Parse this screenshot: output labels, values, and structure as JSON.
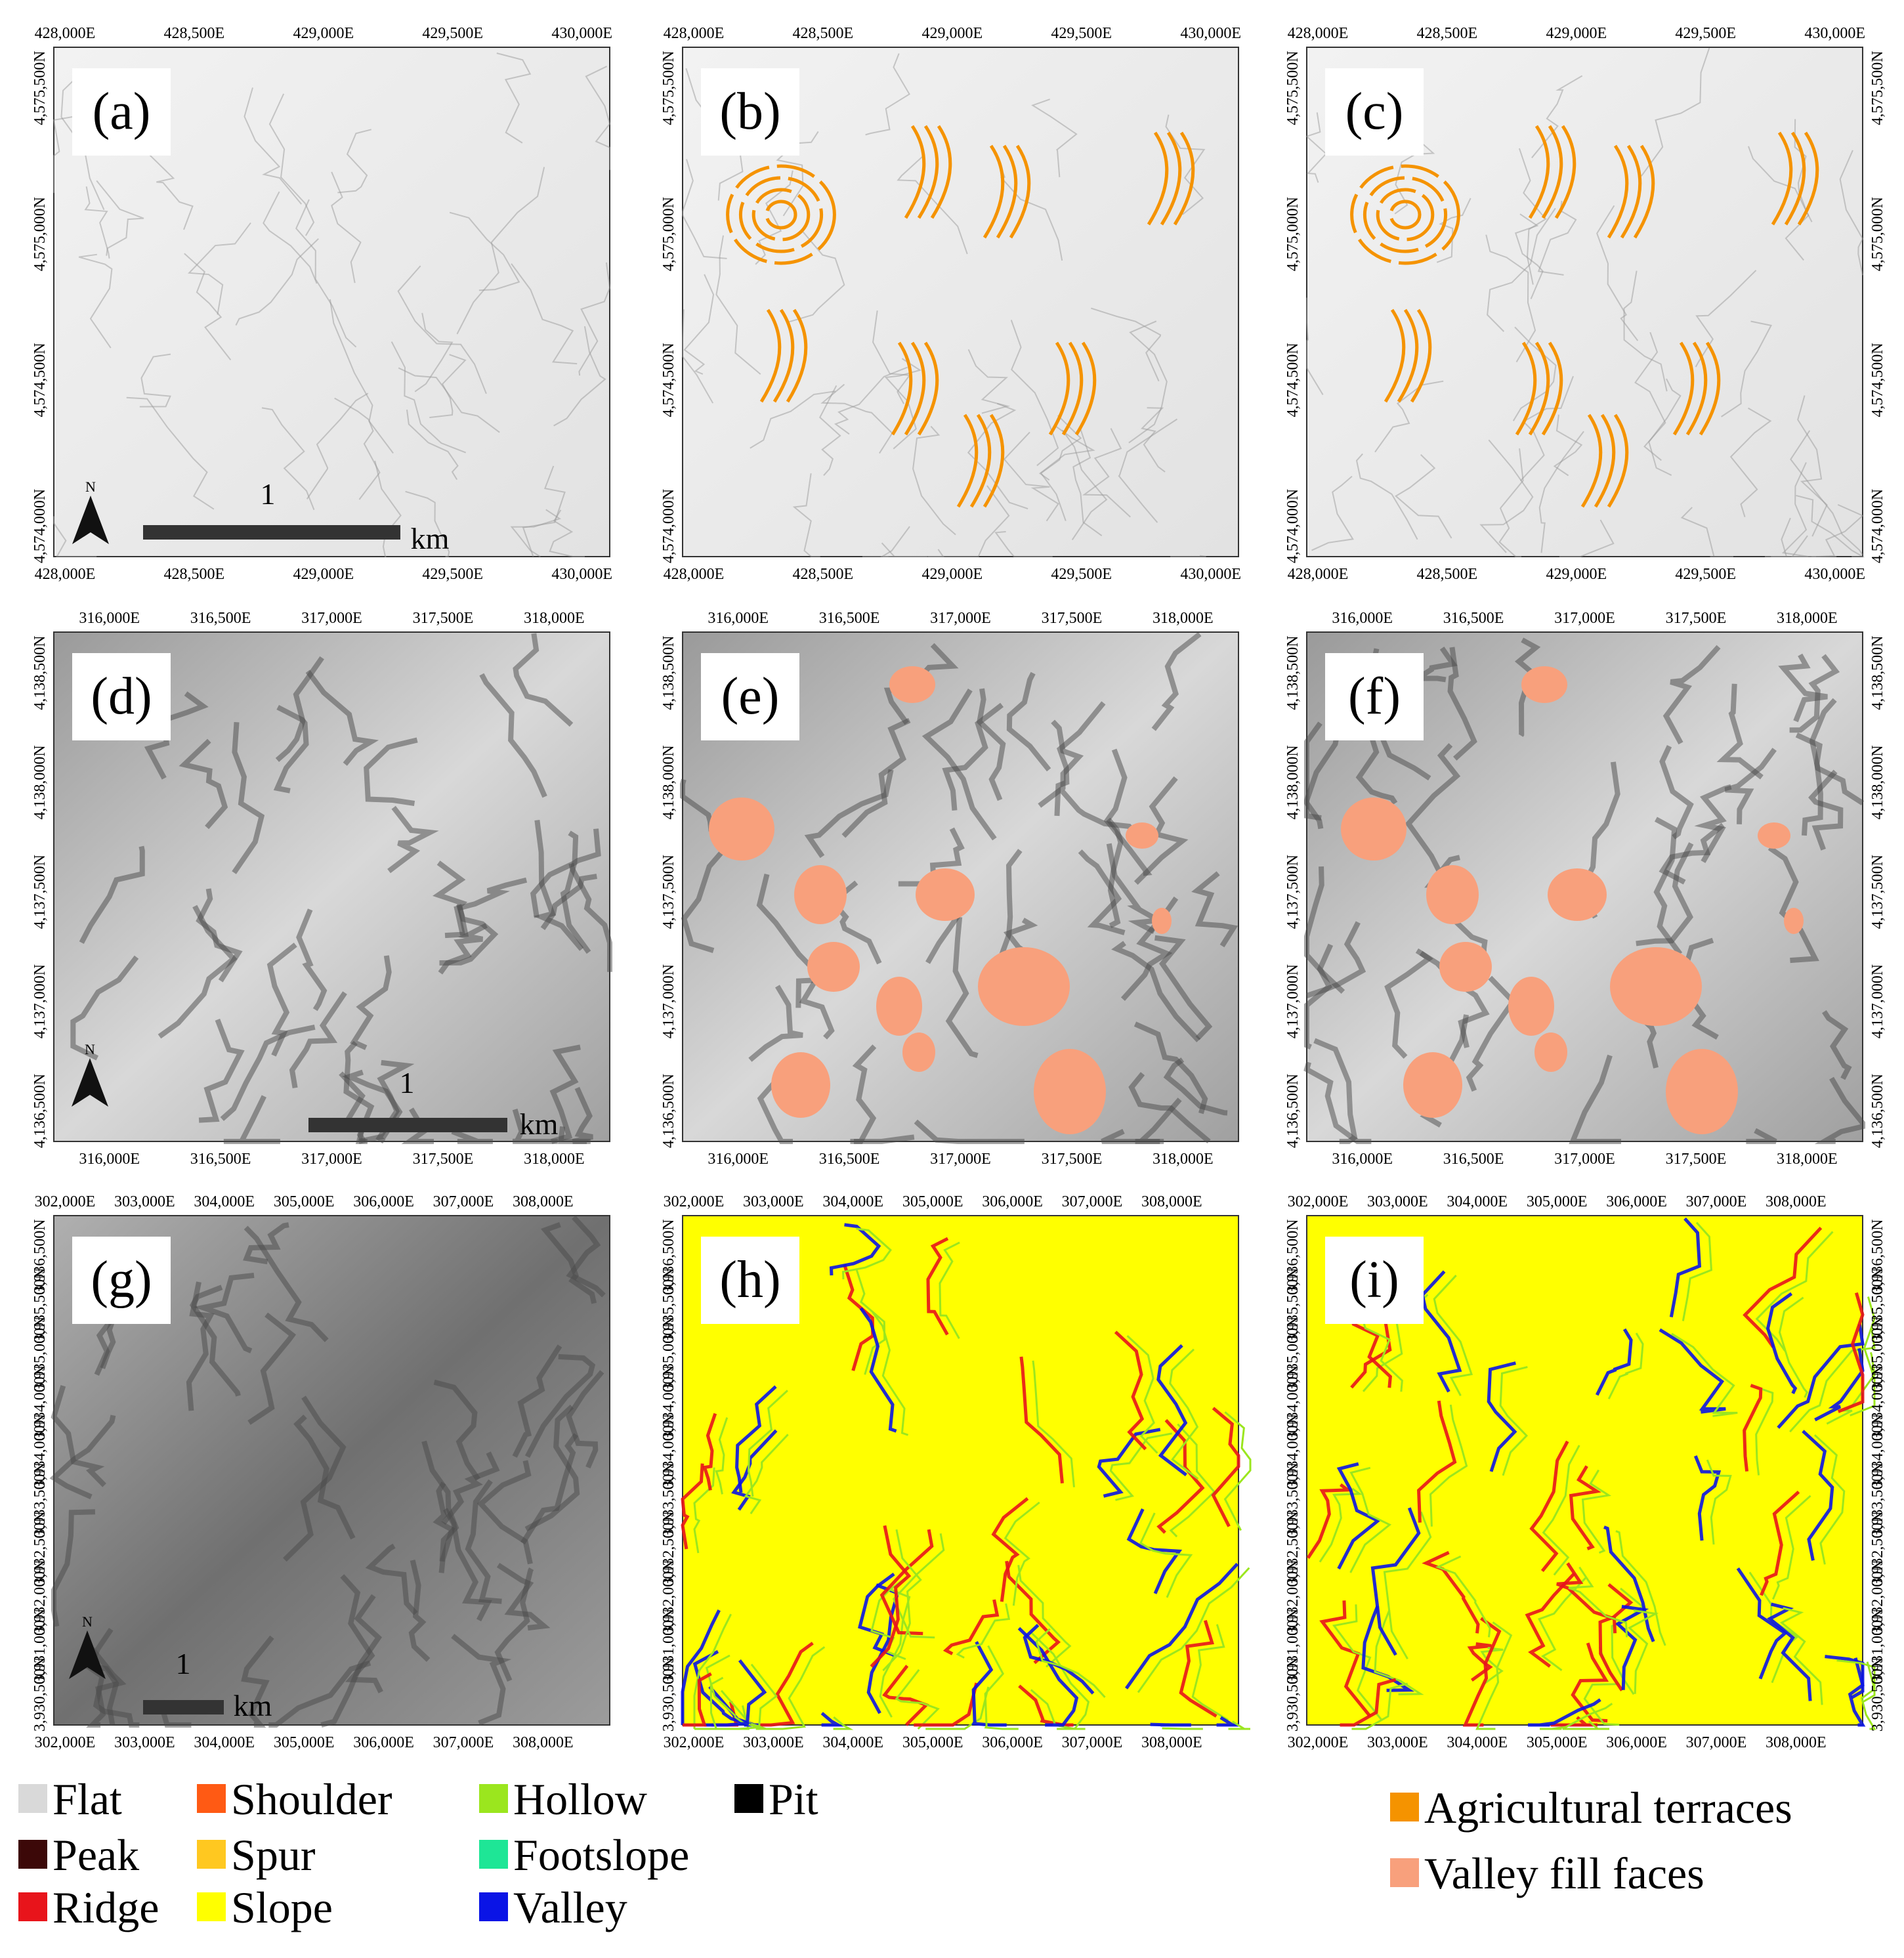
{
  "rows": [
    {
      "xticks": [
        "428,000E",
        "428,500E",
        "429,000E",
        "429,500E",
        "430,000E"
      ],
      "yticks": [
        "4,575,500N",
        "4,575,000N",
        "4,574,500N",
        "4,574,000N"
      ],
      "panels": [
        {
          "label": "(a)",
          "scale": {
            "length": "1",
            "unit": "km",
            "north": "N"
          }
        },
        {
          "label": "(b)"
        },
        {
          "label": "(c)"
        }
      ]
    },
    {
      "xticks": [
        "316,000E",
        "316,500E",
        "317,000E",
        "317,500E",
        "318,000E"
      ],
      "yticks": [
        "4,138,500N",
        "4,138,000N",
        "4,137,500N",
        "4,137,000N",
        "4,136,500N"
      ],
      "panels": [
        {
          "label": "(d)",
          "scale": {
            "length": "1",
            "unit": "km",
            "north": "N"
          }
        },
        {
          "label": "(e)"
        },
        {
          "label": "(f)"
        }
      ]
    },
    {
      "xticks": [
        "302,000E",
        "303,000E",
        "304,000E",
        "305,000E",
        "306,000E",
        "307,000E",
        "308,000E"
      ],
      "yticks": [
        "3,936,500N",
        "3,935,500N",
        "3,935,000N",
        "3,934,000N",
        "3,934,000N",
        "3,933,500N",
        "3,932,500N",
        "3,932,000N",
        "3,931,000N",
        "3,930,500N"
      ],
      "panels": [
        {
          "label": "(g)",
          "scale": {
            "length": "1",
            "unit": "km",
            "north": "N"
          }
        },
        {
          "label": "(h)"
        },
        {
          "label": "(i)"
        }
      ]
    }
  ],
  "legend": [
    {
      "name": "Flat",
      "color": "#d9d9d9"
    },
    {
      "name": "Peak",
      "color": "#3c0808"
    },
    {
      "name": "Ridge",
      "color": "#e8141b"
    },
    {
      "name": "Shoulder",
      "color": "#ff5a14"
    },
    {
      "name": "Spur",
      "color": "#ffc820"
    },
    {
      "name": "Slope",
      "color": "#ffff00"
    },
    {
      "name": "Hollow",
      "color": "#9be61e"
    },
    {
      "name": "Footslope",
      "color": "#1ee696"
    },
    {
      "name": "Valley",
      "color": "#0a14e6"
    },
    {
      "name": "Pit",
      "color": "#000000"
    }
  ],
  "legend2": [
    {
      "name": "Agricultural terraces",
      "color": "#f59300"
    },
    {
      "name": "Valley fill faces",
      "color": "#f8a07c"
    }
  ]
}
